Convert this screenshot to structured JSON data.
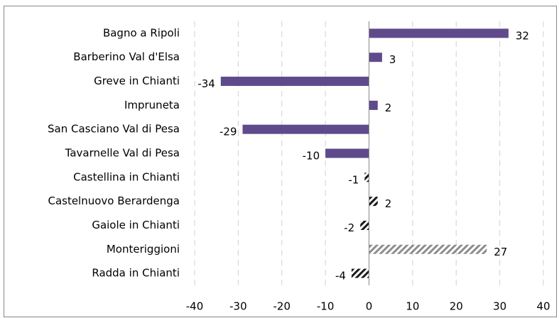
{
  "chart_data": {
    "type": "hbar",
    "categories": [
      "Bagno a Ripoli",
      "Barberino Val d'Elsa",
      "Greve in Chianti",
      "Impruneta",
      "San Casciano Val di Pesa",
      "Tavarnelle Val di Pesa",
      "Castellina in Chianti",
      "Castelnuovo Berardenga",
      "Gaiole in Chianti",
      "Monteriggioni",
      "Radda in Chianti"
    ],
    "values": [
      32,
      3,
      -34,
      2,
      -29,
      -10,
      -1,
      2,
      -2,
      27,
      -4
    ],
    "colors": [
      "#5f4b8b",
      "#5f4b8b",
      "#5f4b8b",
      "#5f4b8b",
      "#5f4b8b",
      "#5f4b8b",
      "#1a1a1a",
      "#1a1a1a",
      "#1a1a1a",
      "#8c8c8c",
      "#1a1a1a"
    ],
    "fills": [
      "solid",
      "solid",
      "solid",
      "solid",
      "solid",
      "solid",
      "hatch",
      "hatch",
      "hatch",
      "hatch",
      "hatch"
    ],
    "xlim": [
      -40,
      40
    ],
    "xticks": [
      -40,
      -30,
      -20,
      -10,
      0,
      10,
      20,
      30,
      40
    ],
    "grid": true
  }
}
